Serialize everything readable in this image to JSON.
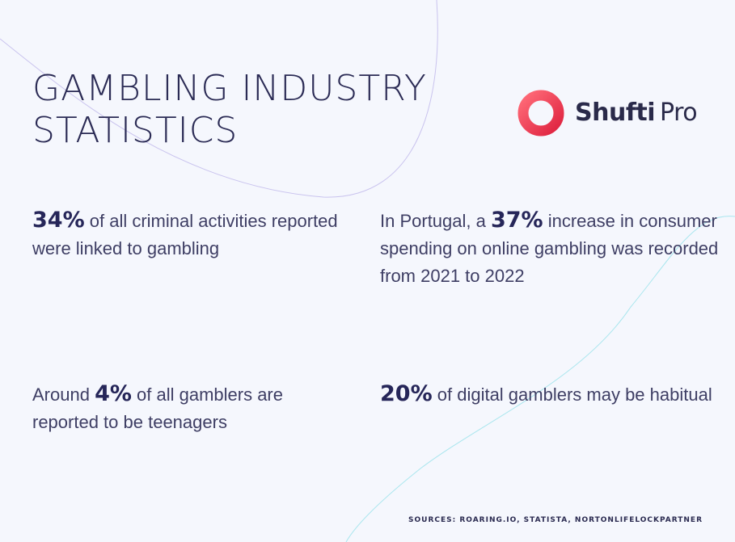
{
  "title": {
    "line1": "GAMBLING INDUSTRY",
    "line2": "STATISTICS"
  },
  "logo": {
    "icon": "shufti-pro-ring-icon",
    "name_bold": "Shufti",
    "name_light": "Pro",
    "colors": {
      "ring_start": "#ff5e6c",
      "ring_end": "#e0233f",
      "text": "#2a2a4a"
    }
  },
  "stats": [
    {
      "prefix": "",
      "value": "34%",
      "suffix": " of all criminal activities reported were linked to gambling"
    },
    {
      "prefix": "In Portugal, a ",
      "value": "37%",
      "suffix": " increase in consumer spending on online gambling was recorded from 2021 to 2022"
    },
    {
      "prefix": "Around ",
      "value": "4%",
      "suffix": " of all gamblers are reported to be teenagers"
    },
    {
      "prefix": "",
      "value": "20%",
      "suffix": " of digital gamblers may be habitual"
    }
  ],
  "sources": "SOURCES: ROARING.IO, STATISTA, NORTONLIFELOCKPARTNER",
  "colors": {
    "background": "#f5f7fd",
    "text": "#3e3e64",
    "accent_curve_purple": "#c9c3ee",
    "accent_curve_teal": "#a9e6ee"
  }
}
